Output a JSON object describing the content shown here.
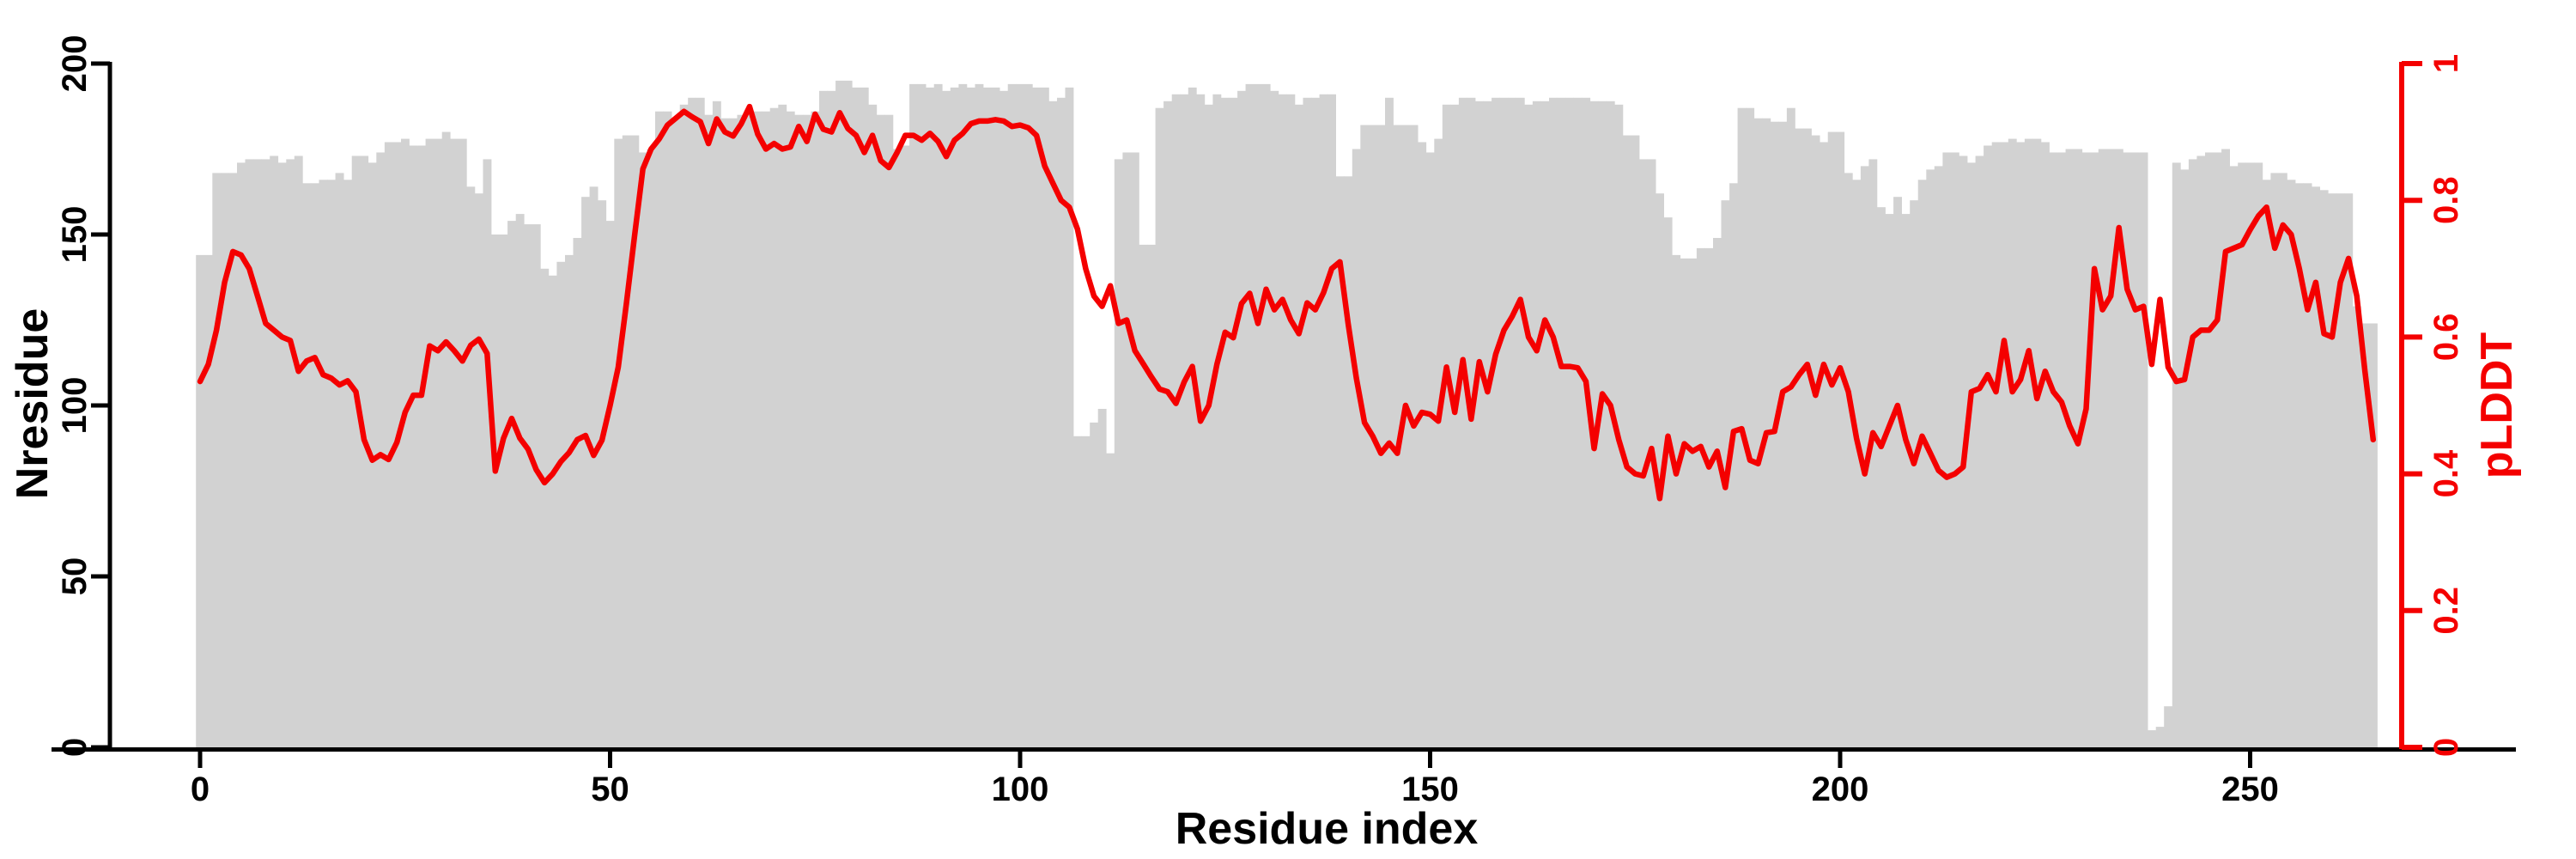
{
  "chart_data": {
    "type": "bar",
    "subtype": "dual-axis bar+line",
    "title": "",
    "xlabel": "Residue index",
    "ylabel_left": "Nresidue",
    "ylabel_right": "pLDDT",
    "x_ticks": [
      "0",
      "50",
      "100",
      "150",
      "200",
      "250"
    ],
    "x_tick_values": [
      0,
      50,
      100,
      150,
      200,
      250
    ],
    "y_left_ticks": [
      "0",
      "50",
      "100",
      "150",
      "200"
    ],
    "y_left_tick_values": [
      0,
      50,
      100,
      150,
      200
    ],
    "y_right_ticks": [
      "0",
      "0.2",
      "0.4",
      "0.6",
      "0.8",
      "1"
    ],
    "y_right_tick_values": [
      0,
      0.2,
      0.4,
      0.6,
      0.8,
      1
    ],
    "ylim_left": [
      0,
      200
    ],
    "ylim_right": [
      0,
      1
    ],
    "xlim": [
      0,
      269
    ],
    "grid": false,
    "legend": "none",
    "colors": {
      "bars": "#d2d2d2",
      "line": "#f40000",
      "axis": "#000000",
      "right_axis": "#f40000"
    },
    "series": [
      {
        "name": "Nresidue",
        "type": "bar",
        "axis": "left",
        "x_start": 0,
        "values": [
          144,
          144,
          168,
          168,
          168,
          171,
          172,
          172,
          172,
          173,
          171,
          172,
          173,
          165,
          165,
          166,
          166,
          168,
          166,
          173,
          173,
          171,
          174,
          177,
          177,
          178,
          176,
          176,
          178,
          178,
          180,
          178,
          178,
          164,
          162,
          172,
          150,
          150,
          154,
          156,
          153,
          153,
          140,
          138,
          142,
          144,
          149,
          161,
          164,
          160,
          154,
          178,
          179,
          179,
          174,
          175,
          186,
          186,
          184,
          188,
          190,
          190,
          185,
          189,
          184,
          184,
          185,
          186,
          186,
          186,
          187,
          188,
          186,
          185,
          185,
          186,
          192,
          192,
          195,
          195,
          193,
          193,
          188,
          185,
          185,
          175,
          176,
          194,
          194,
          193,
          194,
          192,
          193,
          194,
          193,
          194,
          193,
          193,
          192,
          194,
          194,
          194,
          193,
          193,
          189,
          190,
          193,
          91,
          91,
          95,
          99,
          86,
          172,
          174,
          174,
          147,
          147,
          187,
          189,
          191,
          191,
          193,
          191,
          188,
          191,
          190,
          190,
          192,
          194,
          194,
          194,
          192,
          191,
          191,
          188,
          190,
          190,
          191,
          191,
          167,
          167,
          175,
          182,
          182,
          182,
          190,
          182,
          182,
          182,
          177,
          174,
          178,
          188,
          188,
          190,
          190,
          189,
          189,
          190,
          190,
          190,
          190,
          188,
          189,
          189,
          190,
          190,
          190,
          190,
          190,
          189,
          189,
          189,
          188,
          179,
          179,
          172,
          172,
          162,
          155,
          144,
          143,
          143,
          146,
          146,
          149,
          160,
          165,
          187,
          187,
          184,
          184,
          183,
          183,
          187,
          181,
          181,
          179,
          177,
          180,
          180,
          168,
          166,
          170,
          172,
          158,
          156,
          161,
          156,
          160,
          166,
          169,
          170,
          174,
          174,
          173,
          171,
          173,
          176,
          177,
          177,
          178,
          177,
          178,
          178,
          177,
          174,
          174,
          175,
          175,
          174,
          174,
          175,
          175,
          175,
          174,
          174,
          174,
          5,
          6,
          12,
          171,
          169,
          172,
          173,
          174,
          174,
          175,
          170,
          171,
          171,
          171,
          166,
          168,
          168,
          166,
          165,
          165,
          164,
          163,
          162,
          162,
          162,
          129,
          124,
          124
        ]
      },
      {
        "name": "pLDDT",
        "type": "line",
        "axis": "right",
        "x_start": 0,
        "values": [
          0.535,
          0.56,
          0.61,
          0.68,
          0.725,
          0.72,
          0.7,
          0.66,
          0.62,
          0.61,
          0.6,
          0.595,
          0.55,
          0.565,
          0.57,
          0.545,
          0.54,
          0.53,
          0.536,
          0.52,
          0.45,
          0.42,
          0.428,
          0.421,
          0.446,
          0.49,
          0.515,
          0.515,
          0.587,
          0.58,
          0.593,
          0.58,
          0.565,
          0.588,
          0.597,
          0.576,
          0.404,
          0.452,
          0.481,
          0.452,
          0.436,
          0.406,
          0.387,
          0.4,
          0.418,
          0.431,
          0.45,
          0.456,
          0.427,
          0.449,
          0.5,
          0.556,
          0.65,
          0.75,
          0.846,
          0.875,
          0.89,
          0.91,
          0.92,
          0.93,
          0.922,
          0.915,
          0.883,
          0.919,
          0.9,
          0.894,
          0.912,
          0.937,
          0.897,
          0.875,
          0.883,
          0.875,
          0.878,
          0.908,
          0.886,
          0.926,
          0.904,
          0.9,
          0.928,
          0.905,
          0.895,
          0.87,
          0.895,
          0.858,
          0.848,
          0.87,
          0.895,
          0.895,
          0.888,
          0.898,
          0.886,
          0.864,
          0.888,
          0.898,
          0.912,
          0.916,
          0.916,
          0.918,
          0.916,
          0.908,
          0.91,
          0.906,
          0.895,
          0.85,
          0.825,
          0.8,
          0.79,
          0.758,
          0.7,
          0.66,
          0.645,
          0.675,
          0.62,
          0.625,
          0.58,
          0.561,
          0.542,
          0.524,
          0.52,
          0.503,
          0.534,
          0.557,
          0.477,
          0.5,
          0.56,
          0.607,
          0.599,
          0.649,
          0.664,
          0.62,
          0.67,
          0.64,
          0.655,
          0.625,
          0.605,
          0.65,
          0.64,
          0.665,
          0.7,
          0.71,
          0.62,
          0.54,
          0.475,
          0.455,
          0.43,
          0.445,
          0.43,
          0.5,
          0.47,
          0.49,
          0.487,
          0.477,
          0.556,
          0.49,
          0.567,
          0.48,
          0.564,
          0.52,
          0.575,
          0.61,
          0.63,
          0.655,
          0.6,
          0.58,
          0.625,
          0.6,
          0.557,
          0.557,
          0.555,
          0.535,
          0.437,
          0.517,
          0.5,
          0.45,
          0.41,
          0.4,
          0.397,
          0.437,
          0.364,
          0.455,
          0.4,
          0.444,
          0.433,
          0.44,
          0.41,
          0.433,
          0.38,
          0.462,
          0.466,
          0.42,
          0.415,
          0.46,
          0.462,
          0.52,
          0.527,
          0.545,
          0.56,
          0.515,
          0.56,
          0.53,
          0.555,
          0.52,
          0.452,
          0.4,
          0.46,
          0.44,
          0.47,
          0.5,
          0.45,
          0.415,
          0.455,
          0.43,
          0.405,
          0.395,
          0.4,
          0.41,
          0.52,
          0.525,
          0.545,
          0.52,
          0.595,
          0.52,
          0.538,
          0.58,
          0.51,
          0.55,
          0.52,
          0.505,
          0.47,
          0.444,
          0.495,
          0.7,
          0.64,
          0.66,
          0.76,
          0.67,
          0.64,
          0.645,
          0.56,
          0.655,
          0.556,
          0.535,
          0.538,
          0.6,
          0.61,
          0.61,
          0.625,
          0.725,
          0.73,
          0.735,
          0.757,
          0.777,
          0.79,
          0.73,
          0.764,
          0.75,
          0.7,
          0.64,
          0.68,
          0.605,
          0.6,
          0.68,
          0.715,
          0.66,
          0.55,
          0.45
        ]
      }
    ]
  }
}
